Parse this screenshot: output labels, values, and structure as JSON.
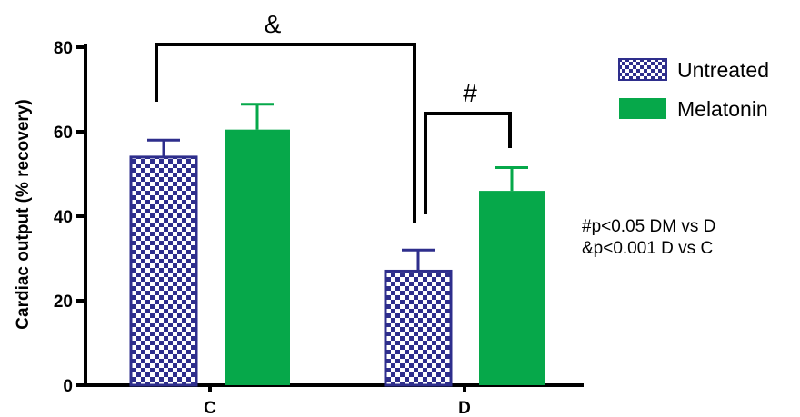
{
  "chart_data": {
    "type": "bar",
    "ylabel": "Cardiac output (% recovery)",
    "ylim": [
      0,
      80
    ],
    "yticks": [
      0,
      20,
      40,
      60,
      80
    ],
    "categories": [
      "C",
      "D"
    ],
    "series": [
      {
        "name": "Untreated",
        "color": "#2e2e8c",
        "pattern": "checkerboard",
        "values": [
          54,
          27
        ],
        "errors": [
          4,
          5
        ]
      },
      {
        "name": "Melatonin",
        "color": "#06a84a",
        "pattern": "solid",
        "values": [
          60.5,
          46
        ],
        "errors": [
          6,
          5.5
        ]
      }
    ],
    "legend_position": "top-right",
    "annotations": [
      {
        "symbol": "&",
        "between": "C-Untreated / D-Untreated"
      },
      {
        "symbol": "#",
        "between": "D-Untreated / D-Melatonin"
      }
    ],
    "notes": [
      "#p<0.05  DM vs D",
      "&p<0.001 D vs C"
    ]
  }
}
